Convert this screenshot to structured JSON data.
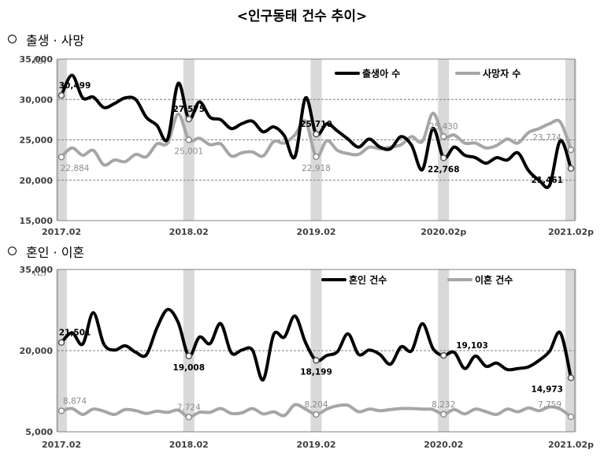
{
  "page": {
    "title": "<인구동태 건수 추이>"
  },
  "sections": [
    {
      "title": "출생 · 사망"
    },
    {
      "title": "혼인 · 이혼"
    }
  ],
  "chart_data": [
    {
      "type": "line",
      "unit": "(명)",
      "ylim": [
        15000,
        35000
      ],
      "yticks": [
        15000,
        20000,
        25000,
        30000,
        35000
      ],
      "ytick_labels": [
        "15,000",
        "20,000",
        "25,000",
        "30,000",
        "35,000"
      ],
      "xlim": [
        0,
        48
      ],
      "xtick_labels": [
        {
          "i": 0,
          "label": "2017.02"
        },
        {
          "i": 12,
          "label": "2018.02"
        },
        {
          "i": 24,
          "label": "2019.02"
        },
        {
          "i": 36,
          "label": "2020.02p"
        },
        {
          "i": 48,
          "label": "2021.02p"
        }
      ],
      "highlight_months": [
        0,
        12,
        24,
        36,
        48
      ],
      "series": [
        {
          "name": "출생아 수",
          "color": "#000000",
          "values": [
            30499,
            33000,
            30200,
            30300,
            29000,
            29500,
            30200,
            30000,
            27800,
            26800,
            25100,
            32000,
            27575,
            29700,
            27800,
            27500,
            26400,
            27000,
            27300,
            26000,
            26600,
            25500,
            22900,
            30200,
            25710,
            27000,
            26100,
            25100,
            24100,
            25100,
            24100,
            23900,
            25400,
            24300,
            21300,
            26400,
            22768,
            24100,
            23100,
            22800,
            22100,
            22800,
            22500,
            23400,
            21200,
            20000,
            19400,
            24900,
            21461
          ],
          "labels": [
            {
              "i": 0,
              "text": "30,499",
              "pos": "above"
            },
            {
              "i": 12,
              "text": "27,575",
              "pos": "above"
            },
            {
              "i": 24,
              "text": "25,710",
              "pos": "above"
            },
            {
              "i": 36,
              "text": "22,768",
              "pos": "below"
            },
            {
              "i": 48,
              "text": "21,461",
              "pos": "belowleft"
            }
          ]
        },
        {
          "name": "사망자 수",
          "color": "#a6a6a6",
          "values": [
            22884,
            24000,
            23100,
            23700,
            21900,
            22500,
            22300,
            23200,
            22900,
            24500,
            24600,
            28200,
            25001,
            25200,
            24400,
            24500,
            23000,
            23400,
            23500,
            23000,
            24800,
            24600,
            25600,
            27300,
            22918,
            24900,
            23700,
            23300,
            23200,
            24100,
            23900,
            24100,
            24400,
            25400,
            24800,
            28300,
            25430,
            25600,
            24600,
            24600,
            24000,
            24300,
            25100,
            24600,
            25900,
            26400,
            27000,
            27200,
            23774
          ],
          "labels": [
            {
              "i": 0,
              "text": "22,884",
              "pos": "below"
            },
            {
              "i": 12,
              "text": "25,001",
              "pos": "below"
            },
            {
              "i": 24,
              "text": "22,918",
              "pos": "below"
            },
            {
              "i": 36,
              "text": "25,430",
              "pos": "above"
            },
            {
              "i": 48,
              "text": "23,774",
              "pos": "aboveleft"
            }
          ]
        }
      ]
    },
    {
      "type": "line",
      "unit": "(건)",
      "ylim": [
        5000,
        35000
      ],
      "yticks": [
        5000,
        20000,
        35000
      ],
      "ytick_labels": [
        "5,000",
        "20,000",
        "35,000"
      ],
      "xlim": [
        0,
        48
      ],
      "xtick_labels": [
        {
          "i": 0,
          "label": "2017.02"
        },
        {
          "i": 12,
          "label": "2018.02"
        },
        {
          "i": 24,
          "label": "2019.02"
        },
        {
          "i": 36,
          "label": "2020.02"
        },
        {
          "i": 48,
          "label": "2021.02p"
        }
      ],
      "highlight_months": [
        0,
        12,
        24,
        36,
        48
      ],
      "series": [
        {
          "name": "혼인 건수",
          "color": "#000000",
          "values": [
            21501,
            23300,
            21200,
            27000,
            21200,
            20100,
            20900,
            19700,
            19200,
            24200,
            27600,
            25200,
            19008,
            22500,
            21300,
            25000,
            19600,
            20100,
            20100,
            14600,
            23000,
            22500,
            26400,
            21500,
            18199,
            19100,
            19800,
            23100,
            19300,
            20100,
            19300,
            17500,
            20700,
            20000,
            25000,
            20400,
            19103,
            19700,
            16700,
            19000,
            17100,
            17700,
            16500,
            16700,
            17000,
            18200,
            19900,
            23300,
            14973
          ],
          "labels": [
            {
              "i": 0,
              "text": "21,501",
              "pos": "above"
            },
            {
              "i": 12,
              "text": "19,008",
              "pos": "below"
            },
            {
              "i": 24,
              "text": "18,199",
              "pos": "below"
            },
            {
              "i": 36,
              "text": "19,103",
              "pos": "aboveright"
            },
            {
              "i": 48,
              "text": "14,973",
              "pos": "belowleft"
            }
          ]
        },
        {
          "name": "이혼 건수",
          "color": "#a6a6a6",
          "values": [
            8874,
            9300,
            8200,
            9200,
            8800,
            8200,
            9100,
            8900,
            8400,
            8800,
            8600,
            9000,
            7724,
            8600,
            8600,
            9300,
            8400,
            8500,
            9300,
            8300,
            8700,
            8000,
            10000,
            9200,
            8204,
            9200,
            9800,
            9900,
            8700,
            9200,
            8900,
            9100,
            9300,
            9300,
            9200,
            9100,
            8232,
            9100,
            8300,
            9200,
            8700,
            8200,
            9200,
            8700,
            9400,
            8900,
            9600,
            9200,
            7759
          ],
          "labels": [
            {
              "i": 0,
              "text": "8,874",
              "pos": "above"
            },
            {
              "i": 12,
              "text": "7,724",
              "pos": "above"
            },
            {
              "i": 24,
              "text": "8,204",
              "pos": "above"
            },
            {
              "i": 36,
              "text": "8,232",
              "pos": "above"
            },
            {
              "i": 48,
              "text": "7,759",
              "pos": "aboveleft"
            }
          ]
        }
      ]
    }
  ]
}
